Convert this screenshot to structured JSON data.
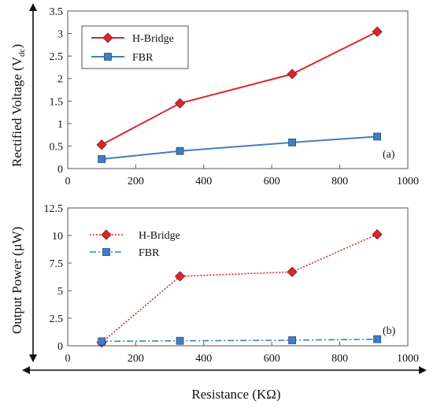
{
  "chart_data": [
    {
      "type": "line",
      "panel_label": "(a)",
      "ylabel": "Rectified Voltage (V",
      "ylabel_subscript": "dc",
      "ylabel_close": ")",
      "xlim": [
        0,
        1000
      ],
      "ylim": [
        0,
        3.5
      ],
      "x_ticks": [
        "0",
        "200",
        "400",
        "600",
        "800",
        "1000"
      ],
      "y_ticks": [
        "0",
        "0.5",
        "1",
        "1.5",
        "2",
        "2.5",
        "3",
        "3.5"
      ],
      "grid": false,
      "legend": "top-left",
      "series": [
        {
          "name": "H-Bridge",
          "color": "#d9262c",
          "marker": "diamond",
          "line_style": "solid",
          "x": [
            100,
            330,
            660,
            910
          ],
          "y": [
            0.53,
            1.45,
            2.1,
            3.04
          ]
        },
        {
          "name": "FBR",
          "color": "#3f7fbf",
          "marker": "square",
          "line_style": "solid",
          "x": [
            100,
            330,
            660,
            910
          ],
          "y": [
            0.21,
            0.39,
            0.58,
            0.71
          ]
        }
      ]
    },
    {
      "type": "line",
      "panel_label": "(b)",
      "ylabel": "Output Power (µW)",
      "xlim": [
        0,
        1000
      ],
      "ylim": [
        0,
        12.5
      ],
      "x_ticks": [
        "0",
        "200",
        "400",
        "600",
        "800",
        "1000"
      ],
      "y_ticks": [
        "0",
        "2.5",
        "5",
        "7.5",
        "10",
        "12.5"
      ],
      "grid": false,
      "legend": "top-left",
      "series": [
        {
          "name": "H-Bridge",
          "color": "#d9262c",
          "marker": "diamond",
          "line_style": "dotted",
          "x": [
            100,
            330,
            660,
            910
          ],
          "y": [
            0.3,
            6.3,
            6.7,
            10.1
          ]
        },
        {
          "name": "FBR",
          "color": "#3f7fbf",
          "marker": "square",
          "line_style": "dashdot",
          "x": [
            100,
            330,
            660,
            910
          ],
          "y": [
            0.4,
            0.45,
            0.5,
            0.6
          ]
        }
      ]
    }
  ],
  "xlabel": "Resistance (KΩ)"
}
